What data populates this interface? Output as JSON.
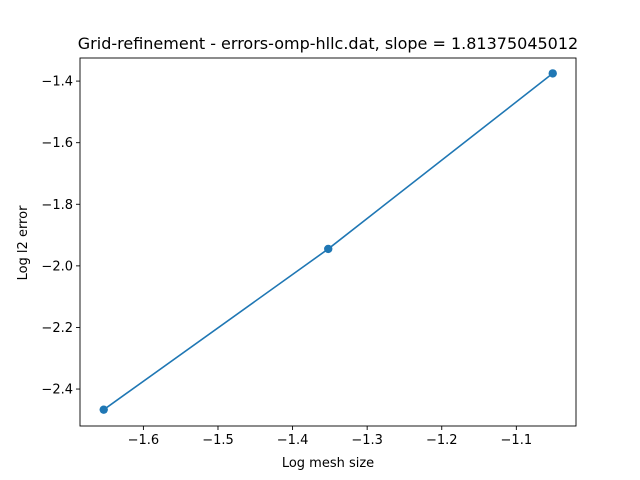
{
  "chart_data": {
    "type": "line",
    "title": "Grid-refinement - errors-omp-hllc.dat, slope = 1.81375045012",
    "xlabel": "Log mesh size",
    "ylabel": "Log l2 error",
    "xlim": [
      -1.685,
      -1.02
    ],
    "ylim": [
      -2.52,
      -1.325
    ],
    "xticks": [
      -1.6,
      -1.5,
      -1.4,
      -1.3,
      -1.2,
      -1.1
    ],
    "xtick_labels": [
      "−1.6",
      "−1.5",
      "−1.4",
      "−1.3",
      "−1.2",
      "−1.1"
    ],
    "yticks": [
      -2.4,
      -2.2,
      -2.0,
      -1.8,
      -1.6,
      -1.4
    ],
    "ytick_labels": [
      "−2.4",
      "−2.2",
      "−2.0",
      "−1.8",
      "−1.6",
      "−1.4"
    ],
    "grid": false,
    "series": [
      {
        "color": "#1f77b4",
        "marker": "circle",
        "x": [
          -1.6532,
          -1.3522,
          -1.0512
        ],
        "y": [
          -2.467,
          -1.945,
          -1.375
        ]
      }
    ]
  }
}
